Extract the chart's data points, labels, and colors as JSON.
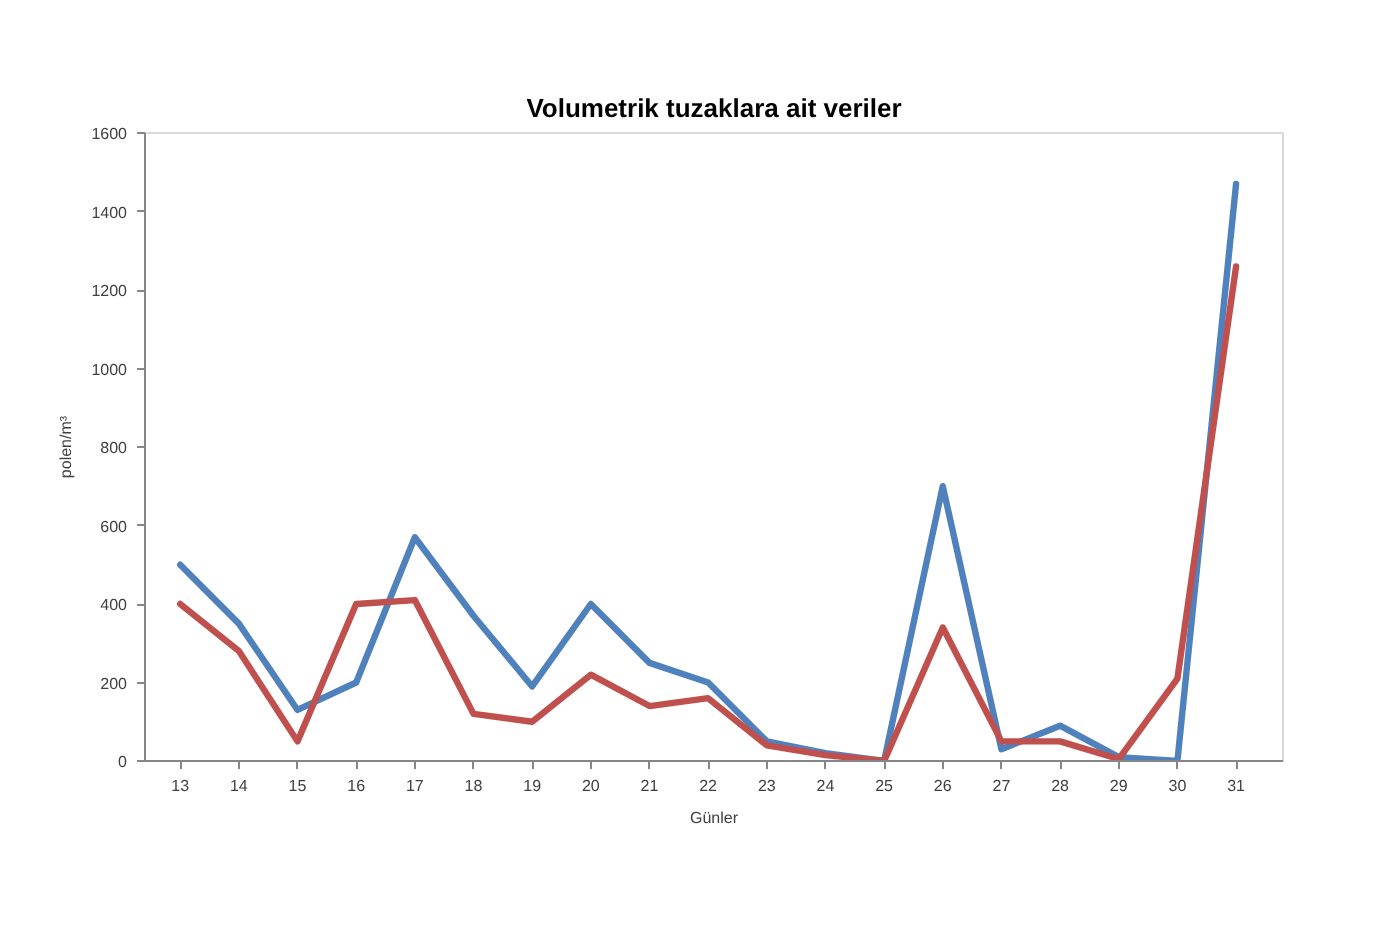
{
  "chart_data": {
    "type": "line",
    "title": "Volumetrik tuzaklara ait veriler",
    "xlabel": "Günler",
    "ylabel": "polen/m³",
    "categories": [
      "13",
      "14",
      "15",
      "16",
      "17",
      "18",
      "19",
      "20",
      "21",
      "22",
      "23",
      "24",
      "25",
      "26",
      "27",
      "28",
      "29",
      "30",
      "31"
    ],
    "series": [
      {
        "color": "#4f81bd",
        "values": [
          500,
          350,
          130,
          200,
          570,
          370,
          190,
          400,
          250,
          200,
          50,
          20,
          0,
          700,
          30,
          90,
          10,
          0,
          1470
        ]
      },
      {
        "color": "#c0504d",
        "values": [
          400,
          280,
          50,
          400,
          410,
          120,
          100,
          220,
          140,
          160,
          40,
          15,
          0,
          340,
          50,
          50,
          5,
          210,
          1260
        ]
      }
    ],
    "ylim": [
      0,
      1600
    ],
    "yticks": [
      0,
      200,
      400,
      600,
      800,
      1000,
      1200,
      1400,
      1600
    ]
  }
}
